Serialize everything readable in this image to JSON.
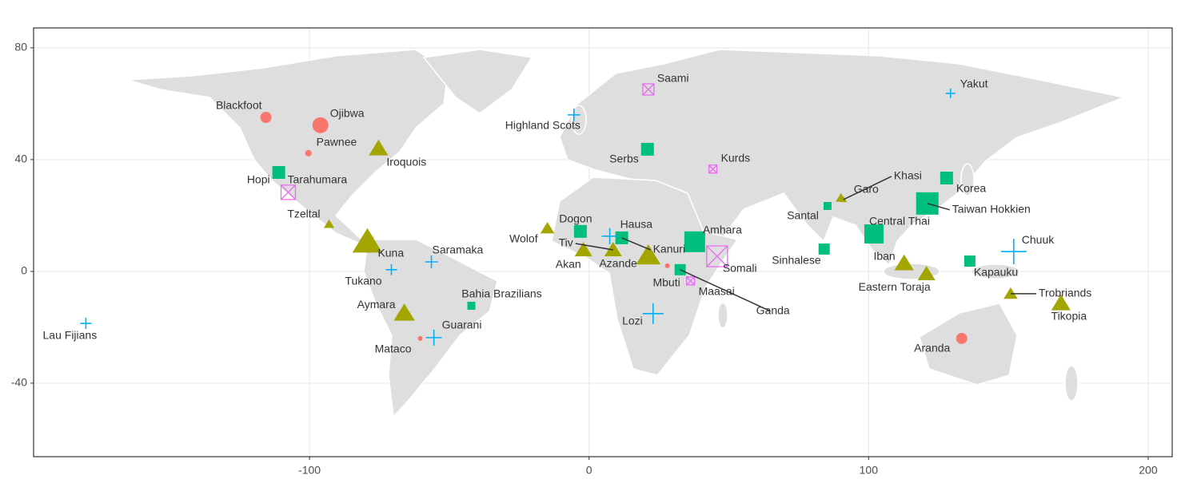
{
  "chart_data": {
    "type": "scatter",
    "xlim": [
      -198.7,
      208.6
    ],
    "ylim": [
      -66.3,
      87.1
    ],
    "xticks": [
      -100,
      0,
      100,
      200
    ],
    "yticks": [
      -40,
      0,
      40,
      80
    ],
    "grid": true,
    "series": [
      {
        "color": "#F8766D",
        "marker": "circle",
        "labels": [
          "Blackfoot",
          "Ojibwa",
          "Pawnee",
          "Mataco",
          "Aranda",
          "Mbuti"
        ],
        "x": [
          -115.6,
          -96.1,
          -100.4,
          -60.4,
          133.3,
          28
        ],
        "y": [
          55.1,
          52.3,
          42.3,
          -24,
          -24,
          2
        ],
        "sizes": [
          3,
          4.5,
          1.5,
          1,
          3,
          1
        ]
      },
      {
        "color": "#A3A500",
        "marker": "triangle",
        "labels": [
          "Iroquois",
          "Tzeltal",
          "Kuna",
          "Aymara",
          "Wolof",
          "Akan",
          "Tiv",
          "Azande",
          "Garo",
          "Khasi",
          "Iban",
          "Eastern Toraja",
          "Trobriands",
          "Tikopia"
        ],
        "x": [
          -75.3,
          -93,
          -79.3,
          -66.1,
          -14.9,
          -2,
          8.6,
          21.2,
          90.1,
          91,
          112.7,
          120.7,
          150.8,
          168.8
        ],
        "y": [
          44,
          16.9,
          10.6,
          -14.9,
          15.4,
          7.7,
          7.7,
          5.7,
          26.3,
          25.7,
          2.9,
          -0.9,
          -8,
          -11.4
        ],
        "sizes": [
          5,
          2.5,
          8,
          5.5,
          3.5,
          4.5,
          4.5,
          6.5,
          2.5,
          1.5,
          5,
          4.5,
          3.5,
          5
        ]
      },
      {
        "color": "#00BF7D",
        "marker": "square",
        "labels": [
          "Hopi",
          "Dogon",
          "Kanuri",
          "Serbs",
          "Amhara",
          "Ganda",
          "Santal",
          "Sinhalese",
          "Taiwan Hokkien",
          "Korea",
          "Central Thai",
          "Kapauku",
          "Bahia Brazilians"
        ],
        "x": [
          -111,
          -3.1,
          11.7,
          20.9,
          37.8,
          32.6,
          85.3,
          84.1,
          121,
          127.9,
          101.9,
          136.2,
          -42.1
        ],
        "y": [
          35.4,
          14.3,
          12,
          43.7,
          10.6,
          0.6,
          23.4,
          8,
          24.3,
          33.4,
          13.4,
          3.7,
          -12.3
        ],
        "sizes": [
          3.5,
          3.5,
          3.5,
          3.5,
          6,
          3,
          2,
          3,
          6.5,
          3.5,
          5.5,
          3,
          2
        ]
      },
      {
        "color": "#00B0F6",
        "marker": "plus",
        "labels": [
          "Lau Fijians",
          "Highland Scots",
          "Saramaka",
          "Tukano",
          "Guarani",
          "Lozi",
          "Hausa",
          "Yakut",
          "Chuuk"
        ],
        "x": [
          -180,
          -5.4,
          -56.4,
          -70.7,
          -55.5,
          22.9,
          7.4,
          129.3,
          151.9
        ],
        "y": [
          -18.6,
          56,
          3.4,
          0.6,
          -23.7,
          -15.1,
          12.6,
          63.7,
          7.1
        ],
        "sizes": [
          3,
          3.5,
          3.5,
          3,
          4.5,
          6,
          4.5,
          2.5,
          7.5
        ]
      },
      {
        "color": "#E76BF3",
        "marker": "boxed-x",
        "labels": [
          "Saami",
          "Kurds",
          "Tarahumara",
          "Somali",
          "Maasai"
        ],
        "x": [
          21.2,
          44.3,
          -107.6,
          45.8,
          36.3
        ],
        "y": [
          65.1,
          36.6,
          28.3,
          5.4,
          -3.4
        ],
        "sizes": [
          3,
          2,
          4,
          6,
          2
        ]
      }
    ]
  }
}
